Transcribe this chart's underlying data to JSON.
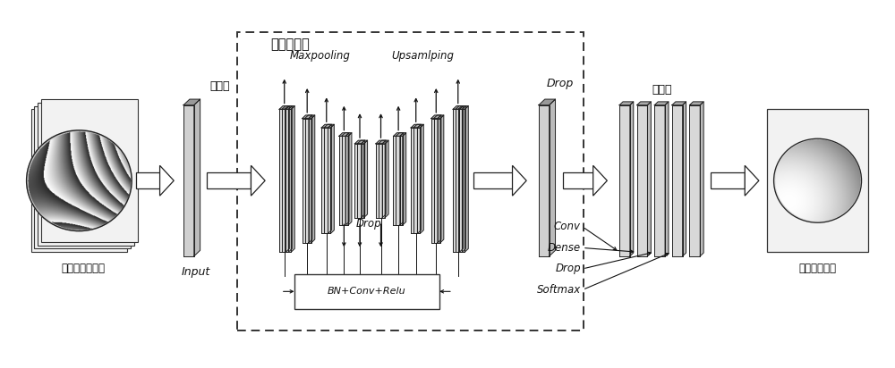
{
  "bg_color": "#ffffff",
  "input_label_cn": "包裹的相位数据",
  "input_label_en": "Input",
  "output_label_cn": "包裹倍数分布",
  "encoder_label": "自编码结构",
  "input_layer_label": "输入层",
  "output_layer_label": "输出层",
  "maxpooling_label": "Maxpooling",
  "upsampling_label": "Upsamlping",
  "drop_label_mid": "Drop",
  "drop_label_right": "Drop",
  "bn_label": "BN+Conv+Relu",
  "conv_label": "Conv",
  "dense_label": "Dense",
  "drop_label_out": "Drop",
  "softmax_label": "Softmax"
}
